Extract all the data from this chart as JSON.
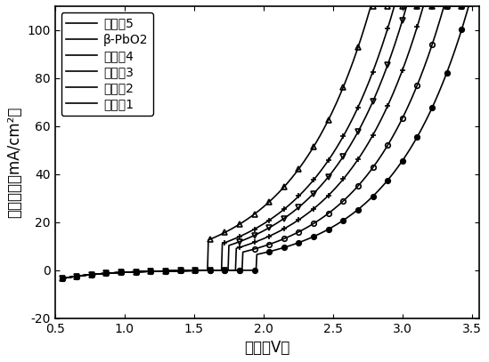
{
  "title": "",
  "xlabel": "电压（V）",
  "ylabel": "电流密度（mA/cm²）",
  "xlim": [
    0.55,
    3.55
  ],
  "ylim": [
    -20,
    110
  ],
  "xticks": [
    0.5,
    1.0,
    1.5,
    2.0,
    2.5,
    3.0,
    3.5
  ],
  "yticks": [
    -20,
    0,
    20,
    40,
    60,
    80,
    100
  ],
  "series": [
    {
      "label": "实施例5",
      "marker": "^",
      "markersize": 4,
      "fillstyle": "none",
      "color": "black",
      "linewidth": 1.2,
      "onset": 1.9,
      "scale": 1.0,
      "shift": 0.0
    },
    {
      "label": "β-PbO2",
      "marker": "+",
      "markersize": 5,
      "fillstyle": "full",
      "color": "black",
      "linewidth": 1.2,
      "onset": 2.0,
      "scale": 0.88,
      "shift": 0.0
    },
    {
      "label": "实施例4",
      "marker": "v",
      "markersize": 4,
      "fillstyle": "none",
      "color": "black",
      "linewidth": 1.2,
      "onset": 2.05,
      "scale": 0.82,
      "shift": 0.0
    },
    {
      "label": "实施例3",
      "marker": "+",
      "markersize": 5,
      "fillstyle": "full",
      "color": "black",
      "linewidth": 1.2,
      "onset": 2.1,
      "scale": 0.72,
      "shift": 0.0
    },
    {
      "label": "实施例2",
      "marker": "o",
      "markersize": 4,
      "fillstyle": "none",
      "color": "black",
      "linewidth": 1.2,
      "onset": 2.15,
      "scale": 0.6,
      "shift": 0.0
    },
    {
      "label": "实施例1",
      "marker": "o",
      "markersize": 4,
      "fillstyle": "full",
      "color": "black",
      "linewidth": 1.2,
      "onset": 2.25,
      "scale": 0.52,
      "shift": 0.0
    }
  ],
  "background_color": "white",
  "legend_fontsize": 10,
  "axis_fontsize": 12,
  "tick_fontsize": 10
}
